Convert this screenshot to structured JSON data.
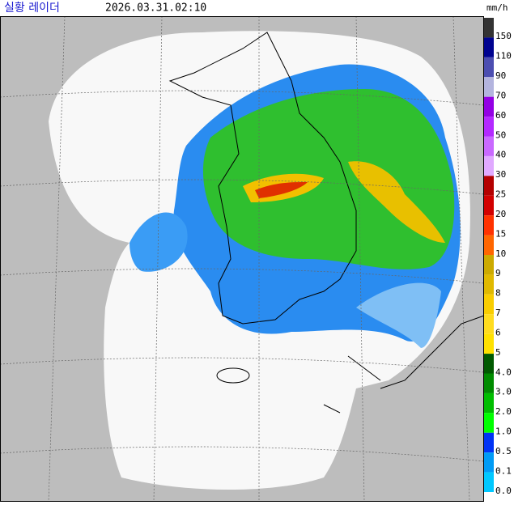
{
  "header": {
    "title": "실황 레이더",
    "timestamp": "2026.03.31.02:10",
    "unit": "mm/h"
  },
  "legend": [
    {
      "label": "150",
      "color": "#333333"
    },
    {
      "label": "110",
      "color": "#000390"
    },
    {
      "label": "90",
      "color": "#4c4eb1"
    },
    {
      "label": "70",
      "color": "#b3b4de"
    },
    {
      "label": "60",
      "color": "#9300e4"
    },
    {
      "label": "50",
      "color": "#b329ff"
    },
    {
      "label": "40",
      "color": "#c969ff"
    },
    {
      "label": "30",
      "color": "#e0a9ff"
    },
    {
      "label": "25",
      "color": "#b40000"
    },
    {
      "label": "20",
      "color": "#d20000"
    },
    {
      "label": "15",
      "color": "#ff3200"
    },
    {
      "label": "10",
      "color": "#ff6600"
    },
    {
      "label": "9",
      "color": "#ccaa00"
    },
    {
      "label": "8",
      "color": "#e0b900"
    },
    {
      "label": "7",
      "color": "#f9cd00"
    },
    {
      "label": "6",
      "color": "#ffdc1f"
    },
    {
      "label": "5",
      "color": "#ffe100"
    },
    {
      "label": "4.0",
      "color": "#005a00"
    },
    {
      "label": "3.0",
      "color": "#008c00"
    },
    {
      "label": "2.0",
      "color": "#00be00"
    },
    {
      "label": "1.0",
      "color": "#00ff00"
    },
    {
      "label": "0.5",
      "color": "#0033f5"
    },
    {
      "label": "0.1",
      "color": "#009bf5"
    },
    {
      "label": "0.0",
      "color": "#00c8ff"
    }
  ]
}
